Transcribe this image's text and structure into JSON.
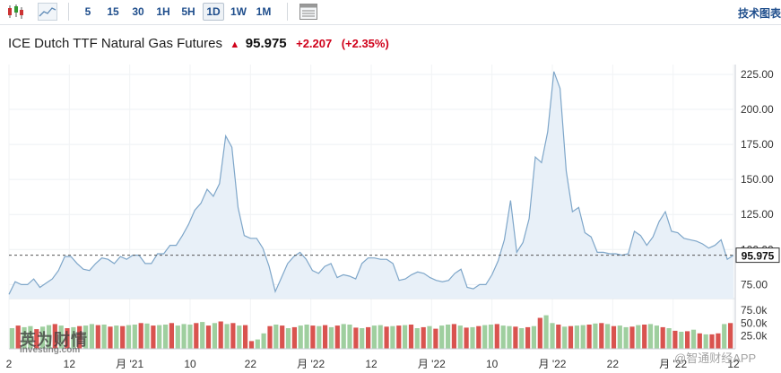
{
  "toolbar": {
    "timeframes": [
      "5",
      "15",
      "30",
      "1H",
      "5H",
      "1D",
      "1W",
      "1M"
    ],
    "active_timeframe": "1D",
    "technical_chart_label": "技术图表",
    "icons": [
      "candlestick-icon",
      "area-chart-icon",
      "layout-icon"
    ]
  },
  "instrument": {
    "name": "ICE Dutch TTF Natural Gas Futures",
    "price": "95.975",
    "change": "+2.207",
    "change_pct": "(+2.35%)",
    "direction_icon": "up-arrow-icon"
  },
  "colors": {
    "line": "#7ea6c9",
    "area": "#e8f0f8",
    "up_volume": "#9fcf9f",
    "down_volume": "#d9534f",
    "negative": "#d0021b",
    "link": "#1f4e8c"
  },
  "chart_data": {
    "type": "area",
    "y_ticks": [
      "225.00",
      "200.00",
      "175.00",
      "150.00",
      "125.00",
      "100.00",
      "75.00"
    ],
    "ylim": [
      65,
      232
    ],
    "current_price_label": "95.975",
    "x_labels": [
      "2",
      "12",
      "月 '21",
      "10",
      "22",
      "月 '22",
      "12",
      "月 '22",
      "10",
      "月 '22",
      "22",
      "月 '22",
      "12"
    ],
    "series": [
      {
        "values": [
          68,
          77,
          75,
          75,
          79,
          73,
          76,
          79,
          85,
          95,
          95,
          90,
          86,
          85,
          90,
          94,
          93,
          90,
          95,
          93,
          96,
          96,
          90,
          90,
          97,
          97,
          103,
          103,
          110,
          118,
          128,
          133,
          143,
          138,
          147,
          181,
          173,
          130,
          110,
          108,
          108,
          101,
          88,
          70,
          80,
          90,
          95,
          98,
          93,
          85,
          83,
          88,
          90,
          80,
          82,
          81,
          79,
          90,
          94,
          94,
          93,
          93,
          90,
          78,
          79,
          82,
          84,
          83,
          80,
          78,
          77,
          78,
          83,
          86,
          73,
          72,
          75,
          75,
          82,
          92,
          107,
          135,
          98,
          105,
          122,
          166,
          162,
          184,
          227,
          215,
          156,
          127,
          130,
          112,
          109,
          98,
          98,
          97,
          97,
          96,
          97,
          113,
          110,
          103,
          109,
          120,
          127,
          113,
          112,
          108,
          107,
          106,
          104,
          101,
          103,
          107,
          93,
          96
        ]
      },
      {
        "values": [
          40,
          45,
          42,
          44,
          38,
          43,
          46,
          48,
          45,
          40,
          42,
          44,
          45,
          48,
          46,
          47,
          43,
          45,
          44,
          46,
          47,
          50,
          49,
          45,
          46,
          47,
          50,
          45,
          48,
          47,
          50,
          52,
          45,
          50,
          53,
          48,
          50,
          45,
          46,
          15,
          18,
          30,
          44,
          47,
          45,
          40,
          42,
          45,
          47,
          45,
          44,
          46,
          42,
          45,
          48,
          47,
          41,
          40,
          42,
          45,
          46,
          43,
          44,
          45,
          46,
          47,
          40,
          42,
          44,
          39,
          45,
          47,
          48,
          45,
          41,
          42,
          44,
          46,
          47,
          48,
          45,
          44,
          43,
          40,
          42,
          44,
          60,
          65,
          50,
          47,
          43,
          44,
          45,
          46,
          47,
          49,
          50,
          48,
          44,
          45,
          42,
          43,
          46,
          47,
          48,
          45,
          42,
          40,
          35,
          33,
          34,
          37,
          30,
          28,
          28,
          30,
          48,
          50
        ],
        "up": [
          1,
          0,
          1,
          1,
          0,
          1,
          1,
          0,
          1,
          0,
          1,
          0,
          1,
          1,
          0,
          1,
          0,
          1,
          0,
          1,
          1,
          0,
          1,
          0,
          1,
          1,
          0,
          1,
          1,
          1,
          0,
          1,
          0,
          1,
          0,
          1,
          0,
          1,
          0,
          0,
          1,
          1,
          0,
          1,
          0,
          1,
          0,
          1,
          1,
          0,
          1,
          0,
          1,
          0,
          1,
          1,
          0,
          1,
          0,
          1,
          1,
          0,
          1,
          0,
          1,
          0,
          1,
          0,
          1,
          0,
          1,
          1,
          0,
          1,
          0,
          1,
          0,
          1,
          1,
          0,
          1,
          1,
          0,
          1,
          0,
          1,
          0,
          1,
          1,
          0,
          1,
          0,
          1,
          1,
          0,
          1,
          0,
          1,
          0,
          1,
          1,
          0,
          1,
          0,
          1,
          1,
          0,
          1,
          0,
          1,
          0,
          1,
          0,
          1,
          0,
          0,
          1,
          0
        ]
      }
    ],
    "volume_ticks": [
      "75.0k",
      "50.0k",
      "25.0k"
    ],
    "volume_max": 80
  },
  "watermarks": {
    "left_big": "英为财情",
    "left_small": "Investing.com",
    "right": "@智通财经APP"
  }
}
